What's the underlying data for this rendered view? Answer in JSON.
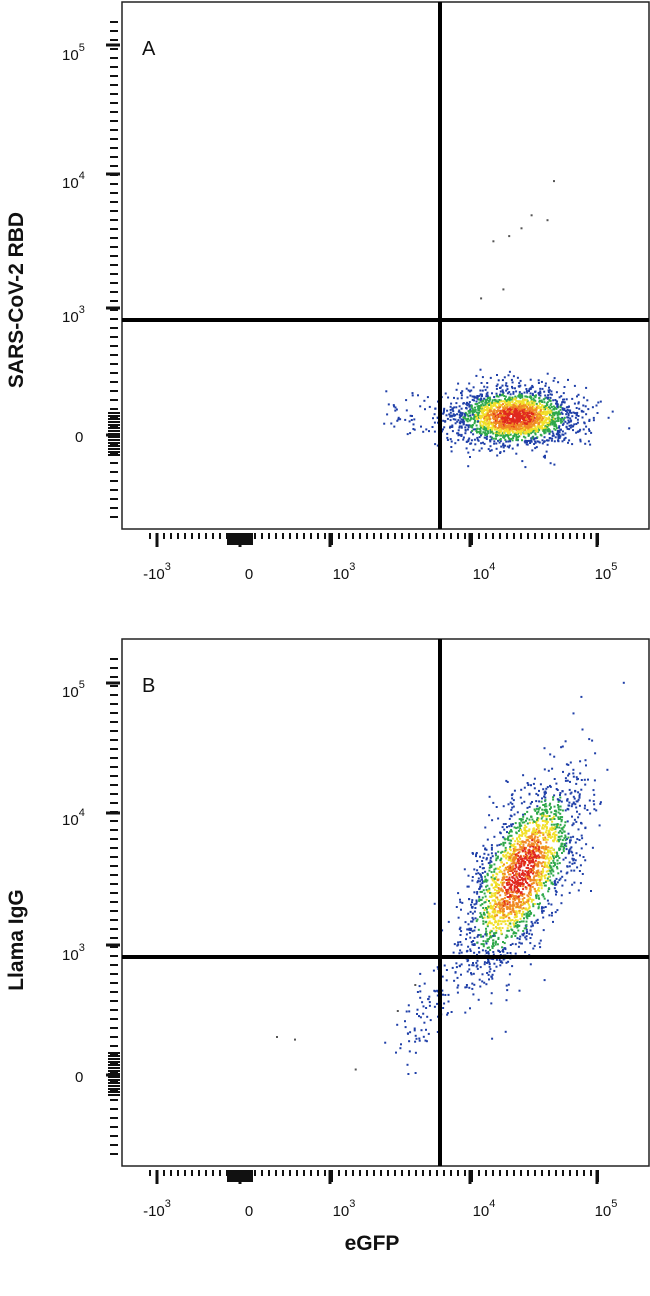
{
  "chart_data": [
    {
      "type": "scatter",
      "panel_label": "A",
      "xlabel": "",
      "ylabel": "SARS-CoV-2 RBD",
      "x_scale": "biexponential",
      "y_scale": "biexponential",
      "x_ticks": [
        {
          "base": "-10",
          "exp": "3"
        },
        {
          "base": "0",
          "exp": ""
        },
        {
          "base": "10",
          "exp": "3"
        },
        {
          "base": "10",
          "exp": "4"
        },
        {
          "base": "10",
          "exp": "5"
        }
      ],
      "y_ticks": [
        {
          "base": "0",
          "exp": ""
        },
        {
          "base": "10",
          "exp": "3"
        },
        {
          "base": "10",
          "exp": "4"
        },
        {
          "base": "10",
          "exp": "5"
        }
      ],
      "quadrant_gate": {
        "x": 5500,
        "y": 850
      },
      "population": {
        "center_x": 22000,
        "center_y": 150,
        "spread": "single cluster, high eGFP, low RBD"
      },
      "sparse_points": [
        [
          12000,
          1200
        ],
        [
          18000,
          1400
        ],
        [
          25000,
          4000
        ],
        [
          30000,
          5000
        ],
        [
          45000,
          9000
        ],
        [
          40000,
          4600
        ],
        [
          20000,
          3500
        ],
        [
          15000,
          3200
        ]
      ],
      "grid": false
    },
    {
      "type": "scatter",
      "panel_label": "B",
      "xlabel": "eGFP",
      "ylabel": "Llama IgG",
      "x_scale": "biexponential",
      "y_scale": "biexponential",
      "x_ticks": [
        {
          "base": "-10",
          "exp": "3"
        },
        {
          "base": "0",
          "exp": ""
        },
        {
          "base": "10",
          "exp": "3"
        },
        {
          "base": "10",
          "exp": "4"
        },
        {
          "base": "10",
          "exp": "5"
        }
      ],
      "y_ticks": [
        {
          "base": "0",
          "exp": ""
        },
        {
          "base": "10",
          "exp": "3"
        },
        {
          "base": "10",
          "exp": "4"
        },
        {
          "base": "10",
          "exp": "5"
        }
      ],
      "quadrant_gate": {
        "x": 5500,
        "y": 850
      },
      "population": {
        "center_x": 25000,
        "center_y": 3500,
        "spread": "diagonal cluster, double positive"
      },
      "sparse_points": [
        [
          400,
          300
        ],
        [
          600,
          280
        ],
        [
          1500,
          50
        ],
        [
          3000,
          500
        ],
        [
          4000,
          700
        ]
      ],
      "grid": false
    }
  ],
  "colors": {
    "density_low": "#1f3fa8",
    "density_mid": "#2ea84a",
    "density_high": "#f2e02a",
    "density_peak": "#e0281e",
    "gate": "#000000"
  }
}
